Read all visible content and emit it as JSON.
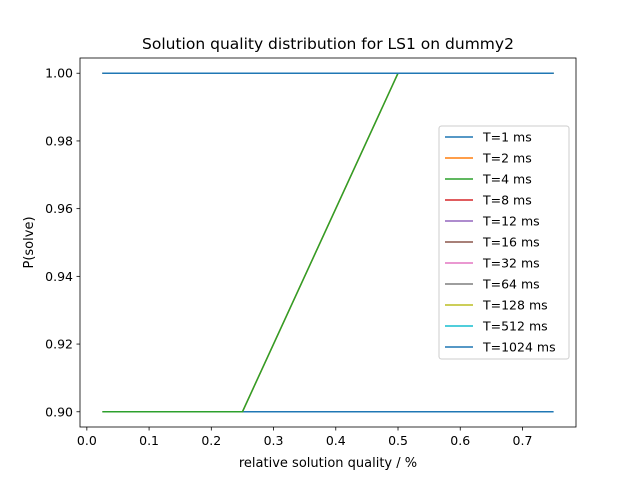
{
  "chart_data": {
    "type": "line",
    "title": "Solution quality distribution for LS1 on dummy2",
    "xlabel": "relative solution quality / %",
    "ylabel": "P(solve)",
    "xlim": [
      -0.011,
      0.786
    ],
    "ylim": [
      0.8955,
      1.0045
    ],
    "xticks": [
      0.0,
      0.1,
      0.2,
      0.3,
      0.4,
      0.5,
      0.6,
      0.7
    ],
    "xtick_labels": [
      "0.0",
      "0.1",
      "0.2",
      "0.3",
      "0.4",
      "0.5",
      "0.6",
      "0.7"
    ],
    "yticks": [
      0.9,
      0.92,
      0.94,
      0.96,
      0.98,
      1.0
    ],
    "ytick_labels": [
      "0.90",
      "0.92",
      "0.94",
      "0.96",
      "0.98",
      "1.00"
    ],
    "grid": false,
    "legend_position": "right",
    "series": [
      {
        "name": "T=1 ms",
        "color": "#1f77b4",
        "x": [
          0.025,
          0.25,
          0.5,
          0.75
        ],
        "y": [
          0.9,
          0.9,
          0.9,
          0.9
        ]
      },
      {
        "name": "T=2 ms",
        "color": "#ff7f0e",
        "x": [
          0.025,
          0.25,
          0.5,
          0.75
        ],
        "y": [
          0.9,
          0.9,
          1.0,
          1.0
        ]
      },
      {
        "name": "T=4 ms",
        "color": "#2ca02c",
        "x": [
          0.025,
          0.25,
          0.5,
          0.75
        ],
        "y": [
          0.9,
          0.9,
          1.0,
          1.0
        ]
      },
      {
        "name": "T=8 ms",
        "color": "#d62728",
        "x": [
          0.025,
          0.25,
          0.5,
          0.75
        ],
        "y": [
          1.0,
          1.0,
          1.0,
          1.0
        ]
      },
      {
        "name": "T=12 ms",
        "color": "#9467bd",
        "x": [
          0.025,
          0.25,
          0.5,
          0.75
        ],
        "y": [
          1.0,
          1.0,
          1.0,
          1.0
        ]
      },
      {
        "name": "T=16 ms",
        "color": "#8c564b",
        "x": [
          0.025,
          0.25,
          0.5,
          0.75
        ],
        "y": [
          1.0,
          1.0,
          1.0,
          1.0
        ]
      },
      {
        "name": "T=32 ms",
        "color": "#e377c2",
        "x": [
          0.025,
          0.25,
          0.5,
          0.75
        ],
        "y": [
          1.0,
          1.0,
          1.0,
          1.0
        ]
      },
      {
        "name": "T=64 ms",
        "color": "#7f7f7f",
        "x": [
          0.025,
          0.25,
          0.5,
          0.75
        ],
        "y": [
          1.0,
          1.0,
          1.0,
          1.0
        ]
      },
      {
        "name": "T=128 ms",
        "color": "#bcbd22",
        "x": [
          0.025,
          0.25,
          0.5,
          0.75
        ],
        "y": [
          1.0,
          1.0,
          1.0,
          1.0
        ]
      },
      {
        "name": "T=512 ms",
        "color": "#17becf",
        "x": [
          0.025,
          0.25,
          0.5,
          0.75
        ],
        "y": [
          1.0,
          1.0,
          1.0,
          1.0
        ]
      },
      {
        "name": "T=1024 ms",
        "color": "#1f77b4",
        "x": [
          0.025,
          0.25,
          0.5,
          0.75
        ],
        "y": [
          1.0,
          1.0,
          1.0,
          1.0
        ]
      }
    ]
  }
}
